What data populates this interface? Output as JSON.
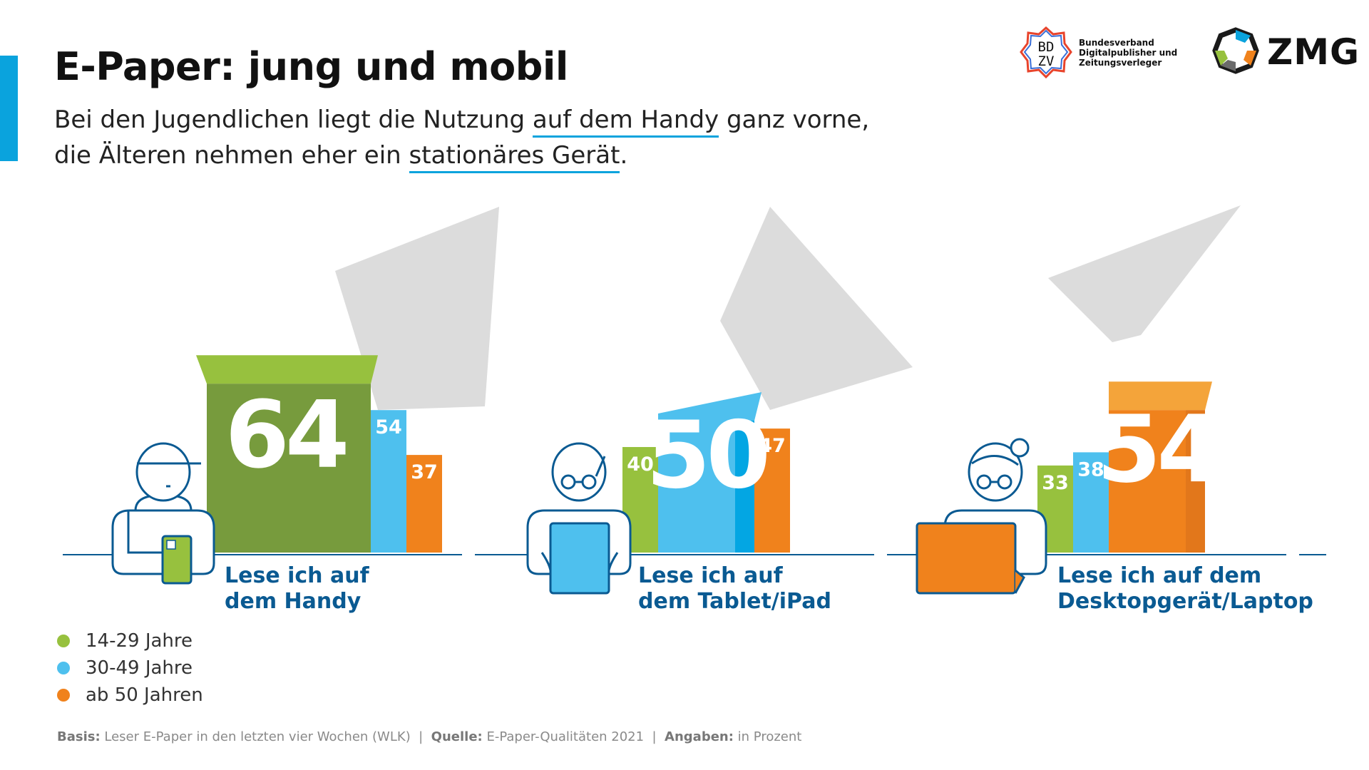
{
  "title": "E-Paper: jung und mobil",
  "subtitle": {
    "line1_a": "Bei den Jugendlichen liegt die Nutzung ",
    "line1_hl": "auf dem Handy",
    "line1_b": " ganz vorne,",
    "line2_a": "die Älteren nehmen eher ein ",
    "line2_hl": "stationäres Gerät",
    "line2_b": "."
  },
  "logos": {
    "bdzv_mark": "BDZV",
    "bdzv_line1": "Bundesverband",
    "bdzv_line2": "Digitalpublisher und",
    "bdzv_line3": "Zeitungsverleger",
    "zmg": "ZMG"
  },
  "colors": {
    "accent": "#0aa3dd",
    "green": "#97c13e",
    "green_dark": "#779b3d",
    "blue": "#4ec0ee",
    "blue_dark": "#03a6e3",
    "orange": "#f0821c",
    "orange_dark": "#e2771b",
    "shadow": "#dcdcdc",
    "label_blue": "#0a5a92",
    "baseline": "#0a5a92"
  },
  "chart_data": {
    "type": "bar",
    "unit": "Prozent",
    "categories": [
      "Lese ich auf dem Handy",
      "Lese ich auf dem Tablet/iPad",
      "Lese ich auf dem Desktopgerät/Laptop"
    ],
    "category_lines": [
      [
        "Lese ich auf",
        "dem Handy"
      ],
      [
        "Lese ich auf",
        "dem Tablet/iPad"
      ],
      [
        "Lese ich auf dem",
        "Desktopgerät/Laptop"
      ]
    ],
    "series": [
      {
        "name": "14-29 Jahre",
        "color": "#97c13e",
        "values": [
          64,
          40,
          33
        ]
      },
      {
        "name": "30-49 Jahre",
        "color": "#4ec0ee",
        "values": [
          54,
          50,
          38
        ]
      },
      {
        "name": "ab 50 Jahren",
        "color": "#f0821c",
        "values": [
          37,
          47,
          54
        ]
      }
    ],
    "highlight_series_index": [
      0,
      1,
      2
    ],
    "ylim": [
      0,
      70
    ]
  },
  "legend": [
    {
      "label": "14-29 Jahre",
      "color": "#97c13e"
    },
    {
      "label": "30-49 Jahre",
      "color": "#4ec0ee"
    },
    {
      "label": "ab 50 Jahren",
      "color": "#f0821c"
    }
  ],
  "footer": {
    "basis_label": "Basis:",
    "basis_text": " Leser E-Paper in den letzten vier Wochen (WLK)",
    "sep1": "  |  ",
    "quelle_label": "Quelle:",
    "quelle_text": " E-Paper-Qualitäten 2021",
    "sep2": "  |  ",
    "angaben_label": "Angaben:",
    "angaben_text": " in Prozent"
  }
}
